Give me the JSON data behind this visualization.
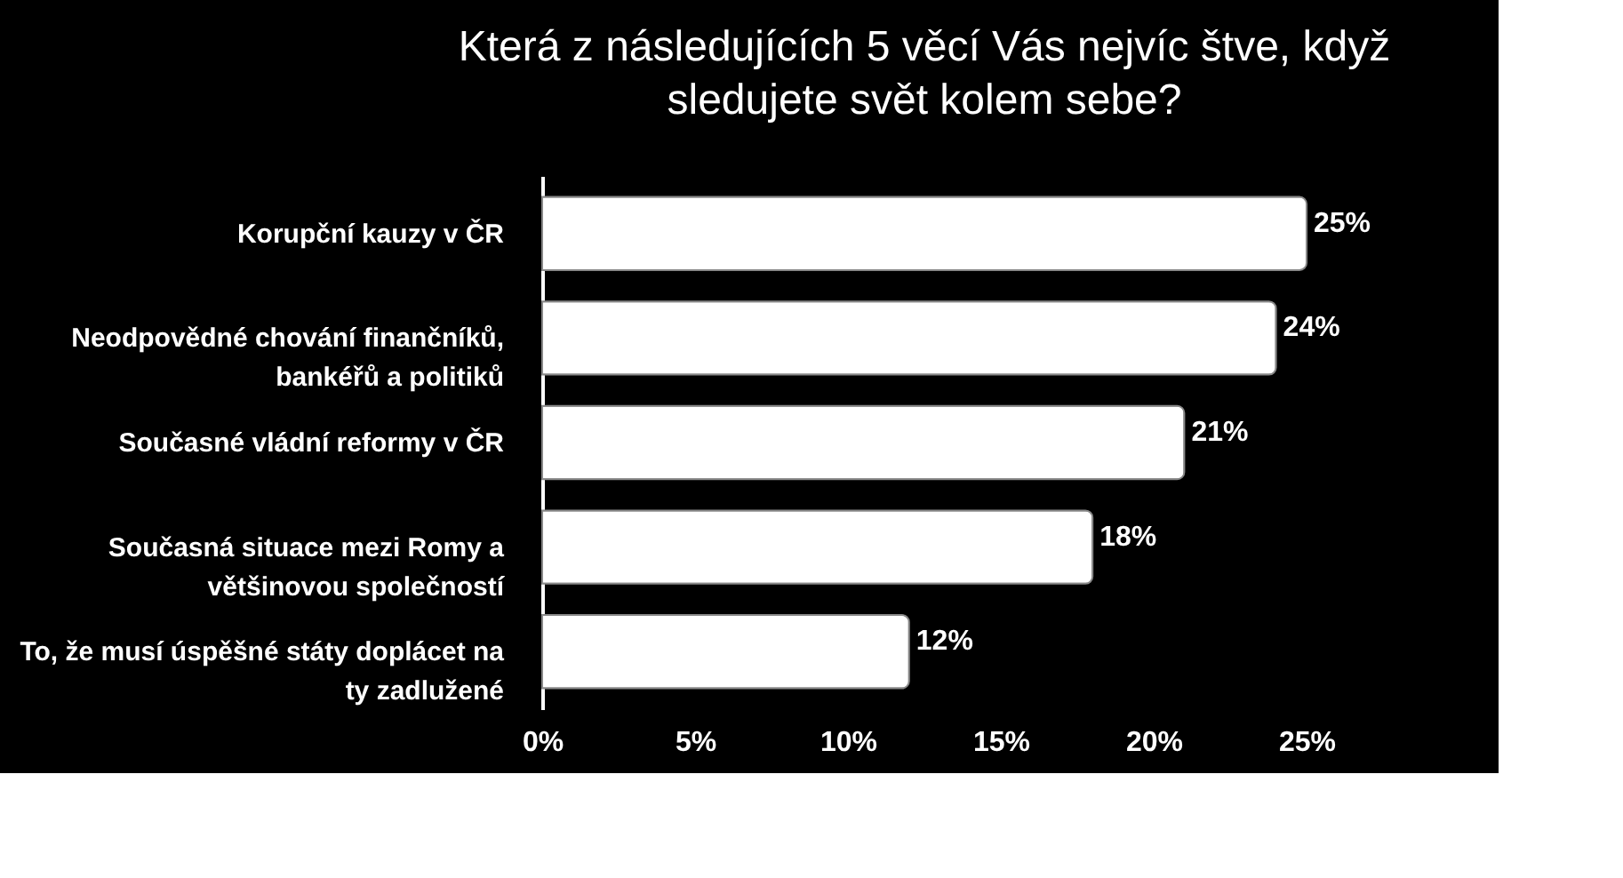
{
  "chart_data": {
    "type": "bar",
    "orientation": "horizontal",
    "title": "Která z následujících 5 věcí Vás nejvíc štve, když sledujete svět kolem sebe?",
    "categories": [
      "Korupční kauzy v ČR",
      "Neodpovědné chování finančníků, bankéřů a politiků",
      "Současné vládní reformy v ČR",
      "Současná situace mezi Romy a většinovou společností",
      "To, že musí úspěšné státy doplácet na ty zadlužené"
    ],
    "values": [
      25,
      24,
      21,
      18,
      12
    ],
    "value_labels": [
      "25%",
      "24%",
      "21%",
      "18%",
      "12%"
    ],
    "color": "#ffffff",
    "xlim": [
      0,
      25
    ],
    "xticks": [
      {
        "value": 0,
        "label": "0%"
      },
      {
        "value": 5,
        "label": "5%"
      },
      {
        "value": 10,
        "label": "10%"
      },
      {
        "value": 15,
        "label": "15%"
      },
      {
        "value": 20,
        "label": "20%"
      },
      {
        "value": 25,
        "label": "25%"
      }
    ],
    "grid": false
  }
}
